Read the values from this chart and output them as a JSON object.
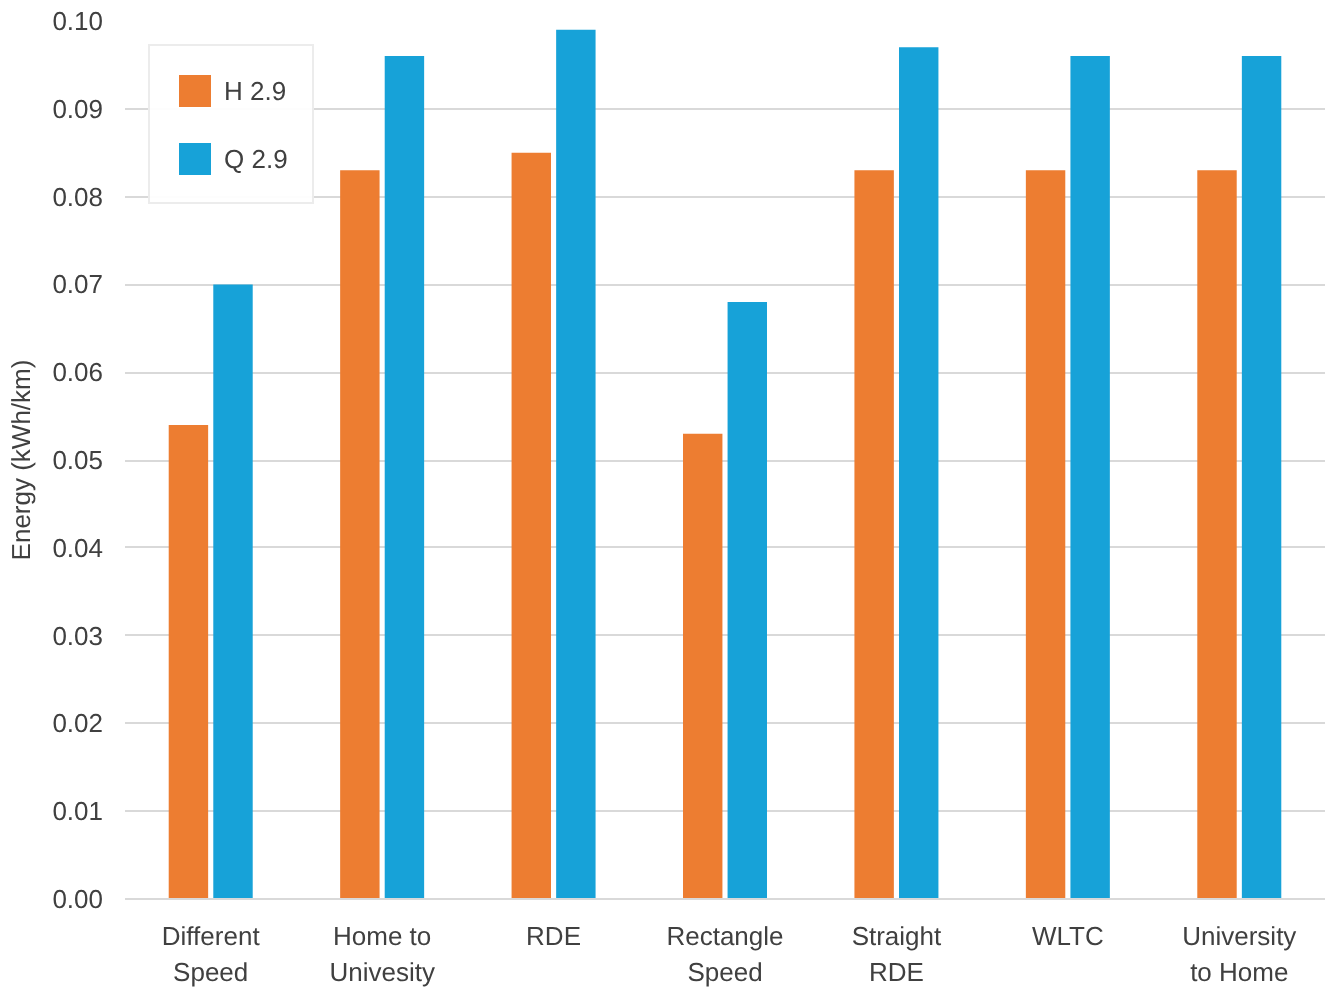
{
  "chart_data": {
    "type": "bar",
    "ylabel": "Energy (kWh/km)",
    "categories": [
      "Different Speed",
      "Home to Univesity",
      "RDE",
      "Rectangle Speed",
      "Straight RDE",
      "WLTC",
      "University to Home"
    ],
    "series": [
      {
        "name": "H 2.9",
        "color": "#ed7d31",
        "values": [
          0.054,
          0.083,
          0.085,
          0.053,
          0.083,
          0.083,
          0.083
        ]
      },
      {
        "name": "Q 2.9",
        "color": "#17a2d8",
        "values": [
          0.07,
          0.096,
          0.099,
          0.068,
          0.097,
          0.096,
          0.096
        ]
      }
    ],
    "ylim": [
      0,
      0.1
    ],
    "yticks": [
      {
        "value": 0,
        "label": "0.00"
      },
      {
        "value": 0.01,
        "label": "0.01"
      },
      {
        "value": 0.02,
        "label": "0.02"
      },
      {
        "value": 0.03,
        "label": "0.03"
      },
      {
        "value": 0.04,
        "label": "0.04"
      },
      {
        "value": 0.05,
        "label": "0.05"
      },
      {
        "value": 0.06,
        "label": "0.06"
      },
      {
        "value": 0.07,
        "label": "0.07"
      },
      {
        "value": 0.08,
        "label": "0.08"
      },
      {
        "value": 0.09,
        "label": "0.09"
      },
      {
        "value": 0.1,
        "label": "0.10"
      }
    ],
    "grid": "y",
    "legend": "top left"
  }
}
